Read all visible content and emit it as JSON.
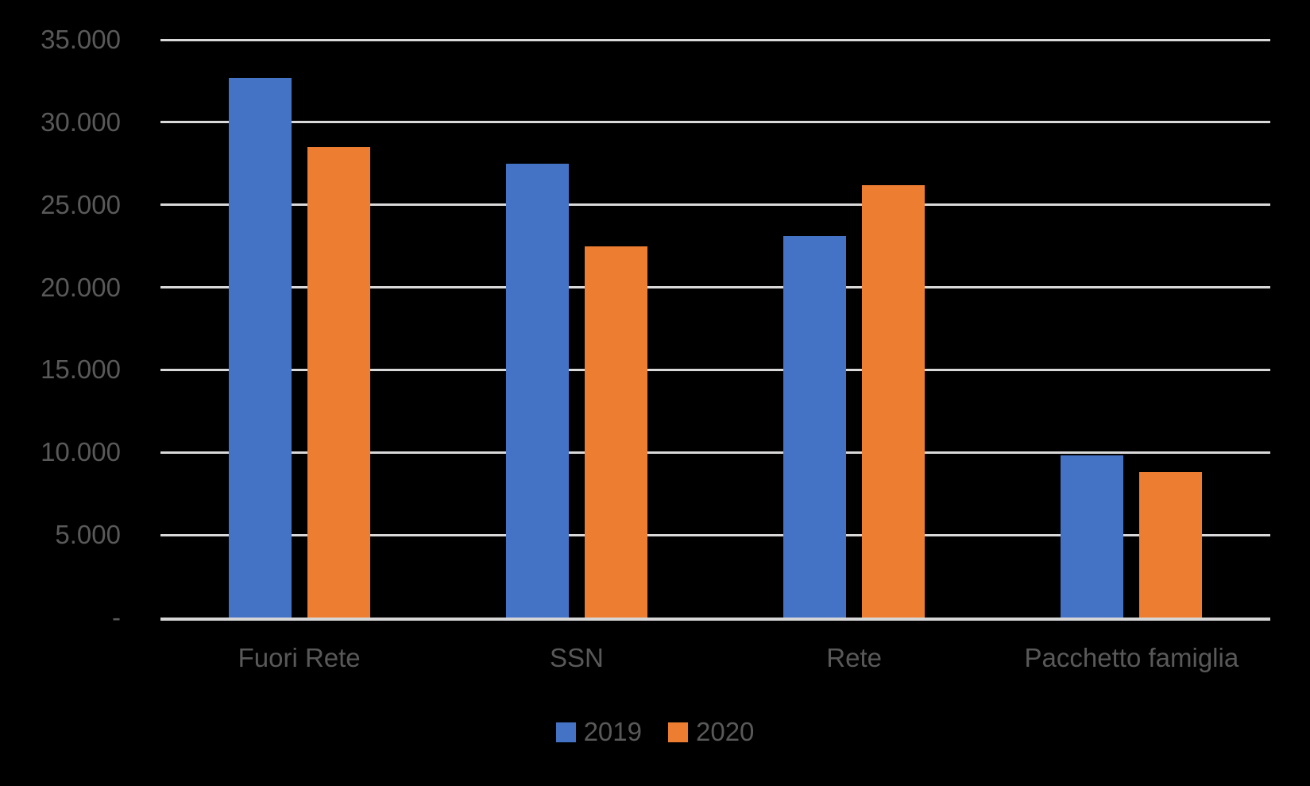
{
  "chart_data": {
    "type": "bar",
    "categories": [
      "Fuori Rete",
      "SSN",
      "Rete",
      "Pacchetto famiglia"
    ],
    "series": [
      {
        "name": "2019",
        "color": "#4472C4",
        "values": [
          32700,
          27500,
          23100,
          9800
        ]
      },
      {
        "name": "2020",
        "color": "#ED7D31",
        "values": [
          28500,
          22500,
          26200,
          8800
        ]
      }
    ],
    "title": "",
    "xlabel": "",
    "ylabel": "",
    "ylim": [
      0,
      35000
    ],
    "ytick_step": 5000,
    "ytick_labels_top_down": [
      "35.000",
      "30.000",
      "25.000",
      "20.000",
      "15.000",
      "10.000",
      "5.000",
      "-"
    ],
    "grid": true,
    "legend_position": "bottom-center"
  },
  "legend": {
    "items": [
      {
        "label": "2019",
        "color": "#4472C4"
      },
      {
        "label": "2020",
        "color": "#ED7D31"
      }
    ]
  },
  "colors": {
    "background": "#000000",
    "gridline": "#D9D9D9",
    "axis_line": "#D6D6D6",
    "label_text": "#595959",
    "series_2019": "#4472C4",
    "series_2020": "#ED7D31"
  }
}
